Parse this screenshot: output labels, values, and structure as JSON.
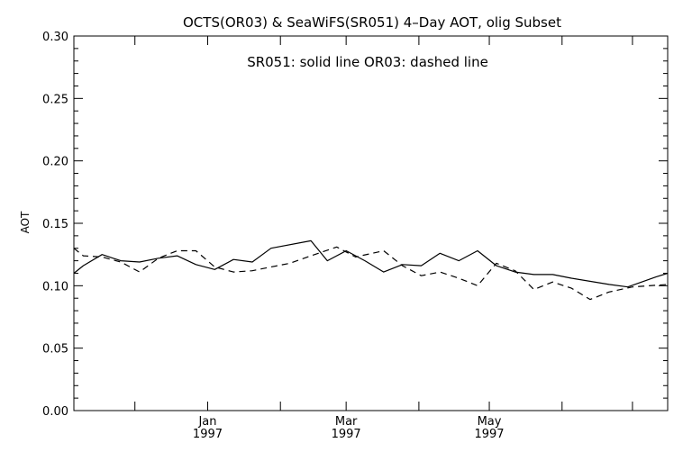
{
  "chart_data": {
    "type": "line",
    "title": "OCTS(OR03) & SeaWiFS(SR051) 4–Day AOT, olig Subset",
    "annotation": "SR051: solid line    OR03: dashed line",
    "xlabel": "",
    "ylabel": "AOT",
    "ylim": [
      0.0,
      0.3
    ],
    "yticks": [
      "0.00",
      "0.05",
      "0.10",
      "0.15",
      "0.20",
      "0.25",
      "0.30"
    ],
    "xlim": [
      "1996-11-05",
      "1997-07-16"
    ],
    "xtick_labels": [
      {
        "date": "1997-01-01",
        "month": "Jan",
        "year": "1997"
      },
      {
        "date": "1997-03-01",
        "month": "Mar",
        "year": "1997"
      },
      {
        "date": "1997-05-01",
        "month": "May",
        "year": "1997"
      }
    ],
    "grid": false,
    "legend": "none",
    "series": [
      {
        "name": "SR051",
        "style": "solid",
        "color": "#000000",
        "points": [
          [
            "1996-11-05",
            0.11
          ],
          [
            "1996-11-09",
            0.116
          ],
          [
            "1996-11-17",
            0.125
          ],
          [
            "1996-11-25",
            0.12
          ],
          [
            "1996-12-03",
            0.119
          ],
          [
            "1996-12-11",
            0.122
          ],
          [
            "1996-12-19",
            0.124
          ],
          [
            "1996-12-27",
            0.117
          ],
          [
            "1997-01-04",
            0.113
          ],
          [
            "1997-01-12",
            0.121
          ],
          [
            "1997-01-20",
            0.119
          ],
          [
            "1997-01-28",
            0.13
          ],
          [
            "1997-02-14",
            0.136
          ],
          [
            "1997-02-21",
            0.12
          ],
          [
            "1997-03-01",
            0.128
          ],
          [
            "1997-03-09",
            0.12
          ],
          [
            "1997-03-17",
            0.111
          ],
          [
            "1997-03-25",
            0.117
          ],
          [
            "1997-04-02",
            0.116
          ],
          [
            "1997-04-10",
            0.126
          ],
          [
            "1997-04-18",
            0.12
          ],
          [
            "1997-04-26",
            0.128
          ],
          [
            "1997-05-04",
            0.116
          ],
          [
            "1997-05-12",
            0.111
          ],
          [
            "1997-05-20",
            0.109
          ],
          [
            "1997-05-28",
            0.109
          ],
          [
            "1997-06-05",
            0.106
          ],
          [
            "1997-06-21",
            0.101
          ],
          [
            "1997-06-29",
            0.099
          ],
          [
            "1997-07-11",
            0.107
          ],
          [
            "1997-07-16",
            0.11
          ]
        ]
      },
      {
        "name": "OR03",
        "style": "dashed",
        "color": "#000000",
        "points": [
          [
            "1996-11-05",
            0.13
          ],
          [
            "1996-11-09",
            0.124
          ],
          [
            "1996-11-17",
            0.123
          ],
          [
            "1996-11-25",
            0.119
          ],
          [
            "1996-12-03",
            0.111
          ],
          [
            "1996-12-11",
            0.122
          ],
          [
            "1996-12-19",
            0.128
          ],
          [
            "1996-12-27",
            0.128
          ],
          [
            "1997-01-04",
            0.115
          ],
          [
            "1997-01-12",
            0.111
          ],
          [
            "1997-01-20",
            0.112
          ],
          [
            "1997-01-28",
            0.115
          ],
          [
            "1997-02-05",
            0.118
          ],
          [
            "1997-02-14",
            0.124
          ],
          [
            "1997-02-25",
            0.131
          ],
          [
            "1997-03-05",
            0.123
          ],
          [
            "1997-03-17",
            0.128
          ],
          [
            "1997-03-25",
            0.116
          ],
          [
            "1997-04-02",
            0.108
          ],
          [
            "1997-04-10",
            0.111
          ],
          [
            "1997-04-18",
            0.106
          ],
          [
            "1997-04-26",
            0.1
          ],
          [
            "1997-05-04",
            0.118
          ],
          [
            "1997-05-12",
            0.112
          ],
          [
            "1997-05-20",
            0.097
          ],
          [
            "1997-05-28",
            0.103
          ],
          [
            "1997-06-05",
            0.098
          ],
          [
            "1997-06-13",
            0.089
          ],
          [
            "1997-06-21",
            0.095
          ],
          [
            "1997-07-01",
            0.099
          ],
          [
            "1997-07-16",
            0.101
          ]
        ]
      }
    ]
  }
}
